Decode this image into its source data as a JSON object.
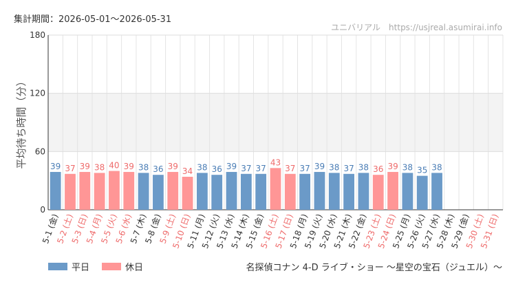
{
  "header": {
    "period": "集計期間：2026-05-01～2026-05-31",
    "source": "ユニバリアル　https://usjreal.asumirai.info"
  },
  "legend": [
    {
      "label": "平日",
      "color": "#6b9ac8"
    },
    {
      "label": "休日",
      "color": "#ff9696"
    }
  ],
  "footer": {
    "title": "名探偵コナン 4-D ライブ・ショー ～星空の宝石（ジュエル）～"
  },
  "chart_data": {
    "type": "bar",
    "ylabel": "平均待ち時間（分）",
    "ylim": [
      0,
      180
    ],
    "yticks": [
      0,
      60,
      120,
      180
    ],
    "highlight_band": [
      60,
      120
    ],
    "colors": {
      "weekday": "#6b9ac8",
      "holiday": "#ff9696",
      "weekday_text": "#4a7db5",
      "holiday_text": "#ee6a6a"
    },
    "categories": [
      "5-1 (金)",
      "5-2 (土)",
      "5-3 (日)",
      "5-4 (月)",
      "5-5 (火)",
      "5-6 (水)",
      "5-7 (木)",
      "5-8 (金)",
      "5-9 (土)",
      "5-10 (日)",
      "5-11 (月)",
      "5-12 (火)",
      "5-13 (水)",
      "5-14 (木)",
      "5-15 (金)",
      "5-16 (土)",
      "5-17 (日)",
      "5-18 (月)",
      "5-19 (火)",
      "5-20 (水)",
      "5-21 (木)",
      "5-22 (金)",
      "5-23 (土)",
      "5-24 (日)",
      "5-25 (月)",
      "5-26 (火)",
      "5-27 (水)",
      "5-28 (木)",
      "5-29 (金)",
      "5-30 (土)",
      "5-31 (日)"
    ],
    "values": [
      39,
      37,
      39,
      38,
      40,
      39,
      38,
      36,
      39,
      34,
      38,
      36,
      39,
      37,
      37,
      43,
      37,
      37,
      39,
      38,
      37,
      38,
      36,
      39,
      38,
      35,
      38,
      null,
      null,
      null,
      null
    ],
    "holiday": [
      false,
      true,
      true,
      true,
      true,
      true,
      false,
      false,
      true,
      true,
      false,
      false,
      false,
      false,
      false,
      true,
      true,
      false,
      false,
      false,
      false,
      false,
      true,
      true,
      false,
      false,
      false,
      false,
      false,
      true,
      true
    ]
  }
}
